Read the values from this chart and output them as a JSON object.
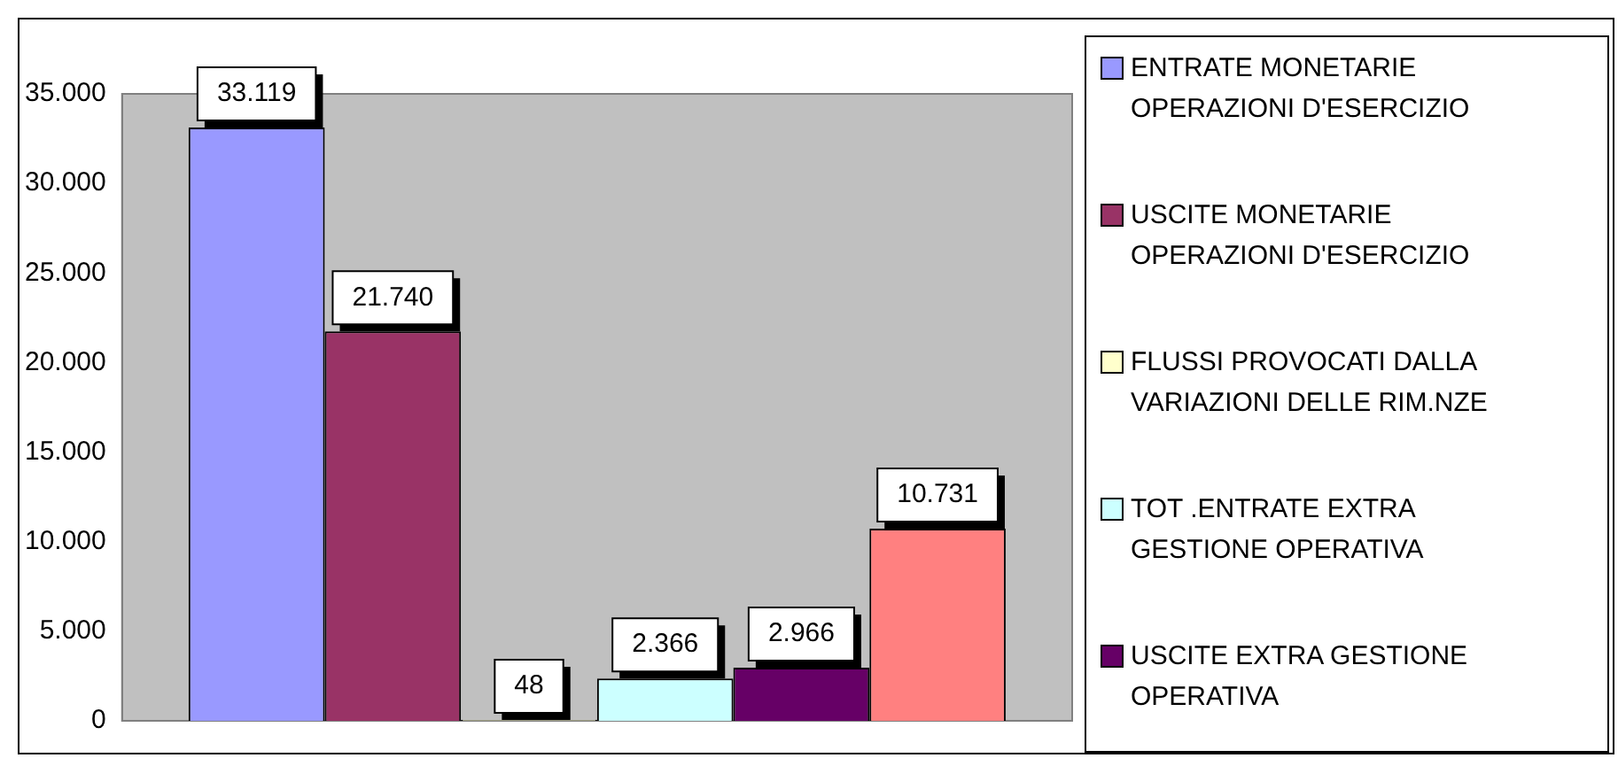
{
  "chart_data": {
    "type": "bar",
    "categories": [
      null
    ],
    "ylim": [
      0,
      35000
    ],
    "yticks": [
      {
        "value": 0,
        "label": "0"
      },
      {
        "value": 5000,
        "label": "5.000"
      },
      {
        "value": 10000,
        "label": "10.000"
      },
      {
        "value": 15000,
        "label": "15.000"
      },
      {
        "value": 20000,
        "label": "20.000"
      },
      {
        "value": 25000,
        "label": "25.000"
      },
      {
        "value": 30000,
        "label": "30.000"
      },
      {
        "value": 35000,
        "label": "35.000"
      }
    ],
    "grid": false,
    "legend": "right",
    "series": [
      {
        "name": "ENTRATE MONETARIE OPERAZIONI D'ESERCIZIO",
        "color": "#9999ff",
        "values": [
          33119
        ],
        "value_labels": [
          "33.119"
        ]
      },
      {
        "name": "USCITE MONETARIE OPERAZIONI D'ESERCIZIO",
        "color": "#993366",
        "values": [
          21740
        ],
        "value_labels": [
          "21.740"
        ]
      },
      {
        "name": "FLUSSI PROVOCATI DALLA VARIAZIONI DELLE RIM.NZE",
        "color": "#ffffcc",
        "values": [
          48
        ],
        "value_labels": [
          "48"
        ]
      },
      {
        "name": "TOT .ENTRATE EXTRA GESTIONE OPERATIVA",
        "color": "#ccffff",
        "values": [
          2366
        ],
        "value_labels": [
          "2.366"
        ]
      },
      {
        "name": "USCITE EXTRA GESTIONE OPERATIVA",
        "color": "#660066",
        "values": [
          2966
        ],
        "value_labels": [
          "2.966"
        ]
      },
      {
        "color": "#ff8080",
        "values": [
          10731
        ],
        "value_labels": [
          "10.731"
        ]
      }
    ]
  }
}
